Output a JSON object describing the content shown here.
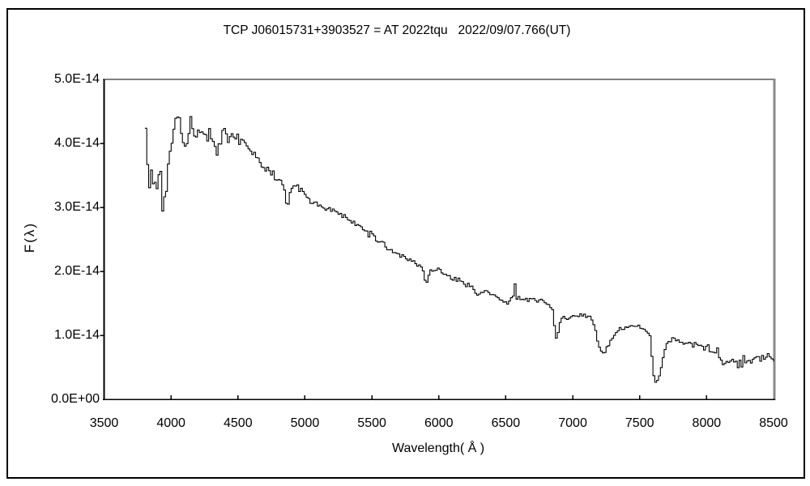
{
  "figure": {
    "title": "TCP J06015731+3903527 = AT 2022tqu   2022/09/07.766(UT)"
  },
  "chart_data": {
    "type": "line",
    "title": "TCP J06015731+3903527 = AT 2022tqu   2022/09/07.766(UT)",
    "xlabel": "Wavelength( Å )",
    "ylabel": "F(λ)",
    "xlim": [
      3500,
      8500
    ],
    "ylim": [
      0,
      5e-14
    ],
    "flux_unit_factor": 1e-14,
    "x_ticks": [
      "3500",
      "4000",
      "4500",
      "5000",
      "5500",
      "6000",
      "6500",
      "7000",
      "7500",
      "8000",
      "8500"
    ],
    "x_tick_values": [
      3500,
      4000,
      4500,
      5000,
      5500,
      6000,
      6500,
      7000,
      7500,
      8000,
      8500
    ],
    "y_tick_labels": [
      "0.0E+00",
      "1.0E-14",
      "2.0E-14",
      "3.0E-14",
      "4.0E-14",
      "5.0E-14"
    ],
    "y_tick_values_1e14": [
      0,
      1,
      2,
      3,
      4,
      5
    ],
    "grid": false,
    "legend": "none",
    "line_color": "#000000",
    "frame_colors": {
      "top": "#808080",
      "right": "#8a8a8a",
      "left": "#000000",
      "bottom": "#000000"
    },
    "series": [
      {
        "name": "spectrum-flux-vs-wavelength",
        "style": "step",
        "sample_step_angstrom": 14,
        "noise_seed": 1337,
        "noise_regions": [
          [
            3805,
            3935,
            0.5
          ],
          [
            3935,
            4005,
            0.28
          ],
          [
            4005,
            4460,
            0.16
          ],
          [
            4460,
            4860,
            0.09
          ],
          [
            4860,
            5600,
            0.065
          ],
          [
            5600,
            6300,
            0.055
          ],
          [
            6300,
            7100,
            0.05
          ],
          [
            7100,
            7570,
            0.045
          ],
          [
            7570,
            7710,
            0.035
          ],
          [
            7710,
            8060,
            0.07
          ],
          [
            8060,
            8500,
            0.125
          ]
        ],
        "control_points_1e14": [
          [
            3805,
            4.55
          ],
          [
            3818,
            3.45
          ],
          [
            3830,
            3.35
          ],
          [
            3845,
            3.6
          ],
          [
            3858,
            3.25
          ],
          [
            3870,
            3.55
          ],
          [
            3885,
            3.3
          ],
          [
            3900,
            3.55
          ],
          [
            3915,
            3.35
          ],
          [
            3933,
            3.05
          ],
          [
            3948,
            3.4
          ],
          [
            3962,
            3.3
          ],
          [
            3975,
            3.7
          ],
          [
            3990,
            3.95
          ],
          [
            4005,
            4.1
          ],
          [
            4020,
            4.3
          ],
          [
            4035,
            4.45
          ],
          [
            4050,
            4.5
          ],
          [
            4065,
            4.35
          ],
          [
            4080,
            4.15
          ],
          [
            4092,
            4.05
          ],
          [
            4104,
            3.92
          ],
          [
            4116,
            4.05
          ],
          [
            4130,
            4.2
          ],
          [
            4145,
            4.32
          ],
          [
            4160,
            4.25
          ],
          [
            4175,
            4.18
          ],
          [
            4190,
            4.25
          ],
          [
            4205,
            4.3
          ],
          [
            4220,
            4.22
          ],
          [
            4235,
            4.15
          ],
          [
            4250,
            4.1
          ],
          [
            4265,
            4.15
          ],
          [
            4280,
            4.22
          ],
          [
            4295,
            4.15
          ],
          [
            4310,
            4.0
          ],
          [
            4325,
            3.88
          ],
          [
            4340,
            3.8
          ],
          [
            4355,
            3.95
          ],
          [
            4370,
            4.08
          ],
          [
            4385,
            4.12
          ],
          [
            4400,
            4.15
          ],
          [
            4430,
            4.1
          ],
          [
            4460,
            4.12
          ],
          [
            4490,
            4.08
          ],
          [
            4520,
            4.05
          ],
          [
            4550,
            4.0
          ],
          [
            4580,
            3.92
          ],
          [
            4610,
            3.85
          ],
          [
            4640,
            3.78
          ],
          [
            4670,
            3.65
          ],
          [
            4700,
            3.6
          ],
          [
            4730,
            3.55
          ],
          [
            4760,
            3.5
          ],
          [
            4790,
            3.45
          ],
          [
            4820,
            3.4
          ],
          [
            4840,
            3.35
          ],
          [
            4852,
            3.12
          ],
          [
            4862,
            2.97
          ],
          [
            4874,
            3.1
          ],
          [
            4886,
            3.28
          ],
          [
            4900,
            3.35
          ],
          [
            4930,
            3.32
          ],
          [
            4960,
            3.28
          ],
          [
            5000,
            3.18
          ],
          [
            5040,
            3.1
          ],
          [
            5080,
            3.06
          ],
          [
            5120,
            3.02
          ],
          [
            5160,
            2.98
          ],
          [
            5200,
            2.96
          ],
          [
            5250,
            2.9
          ],
          [
            5300,
            2.82
          ],
          [
            5350,
            2.76
          ],
          [
            5400,
            2.7
          ],
          [
            5450,
            2.62
          ],
          [
            5500,
            2.55
          ],
          [
            5550,
            2.47
          ],
          [
            5600,
            2.4
          ],
          [
            5650,
            2.32
          ],
          [
            5700,
            2.26
          ],
          [
            5750,
            2.2
          ],
          [
            5800,
            2.16
          ],
          [
            5840,
            2.1
          ],
          [
            5876,
            2.03
          ],
          [
            5890,
            1.84
          ],
          [
            5902,
            1.83
          ],
          [
            5916,
            1.95
          ],
          [
            5930,
            2.02
          ],
          [
            5960,
            2.04
          ],
          [
            6000,
            2.0
          ],
          [
            6040,
            1.96
          ],
          [
            6080,
            1.92
          ],
          [
            6120,
            1.88
          ],
          [
            6160,
            1.84
          ],
          [
            6200,
            1.8
          ],
          [
            6240,
            1.76
          ],
          [
            6270,
            1.68
          ],
          [
            6284,
            1.6
          ],
          [
            6298,
            1.68
          ],
          [
            6320,
            1.7
          ],
          [
            6360,
            1.68
          ],
          [
            6400,
            1.65
          ],
          [
            6440,
            1.58
          ],
          [
            6475,
            1.52
          ],
          [
            6505,
            1.5
          ],
          [
            6530,
            1.56
          ],
          [
            6548,
            1.58
          ],
          [
            6560,
            1.88
          ],
          [
            6574,
            1.58
          ],
          [
            6600,
            1.57
          ],
          [
            6650,
            1.55
          ],
          [
            6700,
            1.55
          ],
          [
            6750,
            1.53
          ],
          [
            6800,
            1.5
          ],
          [
            6830,
            1.47
          ],
          [
            6848,
            1.4
          ],
          [
            6860,
            1.1
          ],
          [
            6872,
            0.95
          ],
          [
            6884,
            1.07
          ],
          [
            6898,
            1.2
          ],
          [
            6912,
            1.28
          ],
          [
            6930,
            1.3
          ],
          [
            6950,
            1.25
          ],
          [
            6975,
            1.27
          ],
          [
            7000,
            1.28
          ],
          [
            7030,
            1.3
          ],
          [
            7060,
            1.32
          ],
          [
            7090,
            1.33
          ],
          [
            7120,
            1.3
          ],
          [
            7145,
            1.2
          ],
          [
            7170,
            1.0
          ],
          [
            7195,
            0.8
          ],
          [
            7220,
            0.73
          ],
          [
            7245,
            0.78
          ],
          [
            7270,
            0.88
          ],
          [
            7300,
            1.0
          ],
          [
            7330,
            1.07
          ],
          [
            7360,
            1.1
          ],
          [
            7400,
            1.13
          ],
          [
            7440,
            1.15
          ],
          [
            7480,
            1.13
          ],
          [
            7520,
            1.1
          ],
          [
            7550,
            1.07
          ],
          [
            7570,
            1.0
          ],
          [
            7584,
            0.7
          ],
          [
            7596,
            0.4
          ],
          [
            7608,
            0.28
          ],
          [
            7620,
            0.24
          ],
          [
            7634,
            0.3
          ],
          [
            7648,
            0.42
          ],
          [
            7662,
            0.58
          ],
          [
            7676,
            0.72
          ],
          [
            7690,
            0.83
          ],
          [
            7705,
            0.9
          ],
          [
            7730,
            0.94
          ],
          [
            7760,
            0.95
          ],
          [
            7800,
            0.92
          ],
          [
            7840,
            0.9
          ],
          [
            7880,
            0.87
          ],
          [
            7920,
            0.85
          ],
          [
            7960,
            0.83
          ],
          [
            8000,
            0.8
          ],
          [
            8040,
            0.74
          ],
          [
            8080,
            0.68
          ],
          [
            8120,
            0.63
          ],
          [
            8160,
            0.6
          ],
          [
            8200,
            0.6
          ],
          [
            8250,
            0.62
          ],
          [
            8300,
            0.6
          ],
          [
            8350,
            0.61
          ],
          [
            8400,
            0.6
          ],
          [
            8450,
            0.62
          ],
          [
            8500,
            0.6
          ]
        ]
      }
    ]
  }
}
